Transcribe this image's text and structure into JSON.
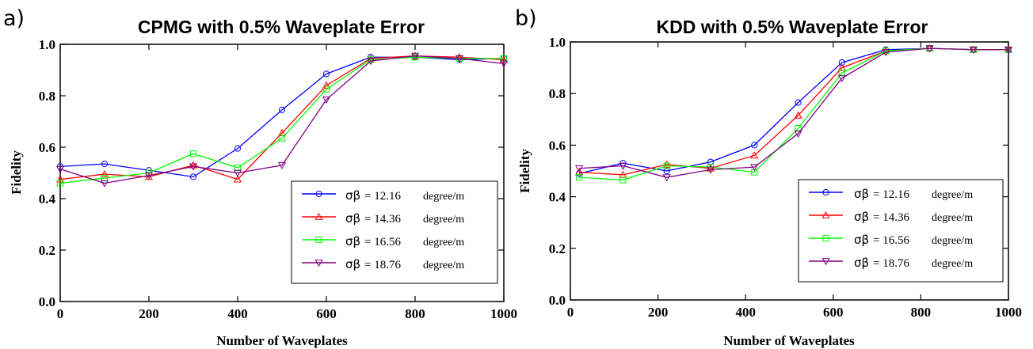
{
  "chart_data": [
    {
      "panel": "a)",
      "type": "line",
      "title": "CPMG with 0.5% Waveplate Error",
      "xlabel": "Number of Waveplates",
      "ylabel": "Fidelity",
      "xlim": [
        0,
        1000
      ],
      "ylim": [
        0,
        1.0
      ],
      "xticks": [
        "0",
        "200",
        "400",
        "600",
        "800",
        "1000"
      ],
      "yticks": [
        "0.0",
        "0.2",
        "0.4",
        "0.6",
        "0.8",
        "1.0"
      ],
      "legend_position": "lower-right",
      "series": [
        {
          "name": "σβ = 12.16 degree/m",
          "symbol": "σβ",
          "value": "= 12.16",
          "unit": "degree/m",
          "color": "#0000ff",
          "marker": "circle",
          "x": [
            0,
            100,
            200,
            300,
            400,
            500,
            600,
            700,
            800,
            900,
            1000
          ],
          "y": [
            0.525,
            0.535,
            0.51,
            0.485,
            0.595,
            0.745,
            0.885,
            0.95,
            0.95,
            0.94,
            0.945
          ]
        },
        {
          "name": "σβ = 14.36 degree/m",
          "symbol": "σβ",
          "value": "= 14.36",
          "unit": "degree/m",
          "color": "#ff0000",
          "marker": "triangle-up",
          "x": [
            0,
            100,
            200,
            300,
            400,
            500,
            600,
            700,
            800,
            900,
            1000
          ],
          "y": [
            0.475,
            0.495,
            0.485,
            0.53,
            0.475,
            0.655,
            0.84,
            0.945,
            0.955,
            0.95,
            0.94
          ]
        },
        {
          "name": "σβ = 16.56 degree/m",
          "symbol": "σβ",
          "value": "= 16.56",
          "unit": "degree/m",
          "color": "#00ff00",
          "marker": "square",
          "x": [
            0,
            100,
            200,
            300,
            400,
            500,
            600,
            700,
            800,
            900,
            1000
          ],
          "y": [
            0.46,
            0.48,
            0.5,
            0.575,
            0.52,
            0.635,
            0.825,
            0.94,
            0.95,
            0.945,
            0.945
          ]
        },
        {
          "name": "σβ = 18.76 degree/m",
          "symbol": "σβ",
          "value": "= 18.76",
          "unit": "degree/m",
          "color": "#800080",
          "marker": "triangle-down",
          "x": [
            0,
            100,
            200,
            300,
            400,
            500,
            600,
            700,
            800,
            900,
            1000
          ],
          "y": [
            0.515,
            0.46,
            0.49,
            0.525,
            0.5,
            0.53,
            0.785,
            0.935,
            0.955,
            0.945,
            0.925
          ]
        }
      ]
    },
    {
      "panel": "b)",
      "type": "line",
      "title": "KDD with 0.5% Waveplate Error",
      "xlabel": "Number of Waveplates",
      "ylabel": "Fidelity",
      "xlim": [
        0,
        1000
      ],
      "ylim": [
        0,
        1.0
      ],
      "xticks": [
        "0",
        "200",
        "400",
        "600",
        "800",
        "1000"
      ],
      "yticks": [
        "0.0",
        "0.2",
        "0.4",
        "0.6",
        "0.8",
        "1.0"
      ],
      "legend_position": "lower-right",
      "series": [
        {
          "name": "σβ = 12.16 degree/m",
          "symbol": "σβ",
          "value": "= 12.16",
          "unit": "degree/m",
          "color": "#0000ff",
          "marker": "circle",
          "x": [
            20,
            120,
            220,
            320,
            420,
            520,
            620,
            720,
            820,
            920,
            1000
          ],
          "y": [
            0.49,
            0.53,
            0.5,
            0.535,
            0.6,
            0.765,
            0.92,
            0.97,
            0.975,
            0.97,
            0.97
          ]
        },
        {
          "name": "σβ = 14.36 degree/m",
          "symbol": "σβ",
          "value": "= 14.36",
          "unit": "degree/m",
          "color": "#ff0000",
          "marker": "triangle-up",
          "x": [
            20,
            120,
            220,
            320,
            420,
            520,
            620,
            720,
            820,
            920,
            1000
          ],
          "y": [
            0.495,
            0.485,
            0.525,
            0.51,
            0.56,
            0.715,
            0.9,
            0.965,
            0.975,
            0.97,
            0.97
          ]
        },
        {
          "name": "σβ = 16.56 degree/m",
          "symbol": "σβ",
          "value": "= 16.56",
          "unit": "degree/m",
          "color": "#00ff00",
          "marker": "square",
          "x": [
            20,
            120,
            220,
            320,
            420,
            520,
            620,
            720,
            820,
            920,
            1000
          ],
          "y": [
            0.475,
            0.465,
            0.52,
            0.515,
            0.495,
            0.665,
            0.88,
            0.965,
            0.975,
            0.97,
            0.97
          ]
        },
        {
          "name": "σβ = 18.76 degree/m",
          "symbol": "σβ",
          "value": "= 18.76",
          "unit": "degree/m",
          "color": "#800080",
          "marker": "triangle-down",
          "x": [
            20,
            120,
            220,
            320,
            420,
            520,
            620,
            720,
            820,
            920,
            1000
          ],
          "y": [
            0.51,
            0.52,
            0.475,
            0.505,
            0.515,
            0.645,
            0.86,
            0.96,
            0.975,
            0.97,
            0.97
          ]
        }
      ]
    }
  ]
}
